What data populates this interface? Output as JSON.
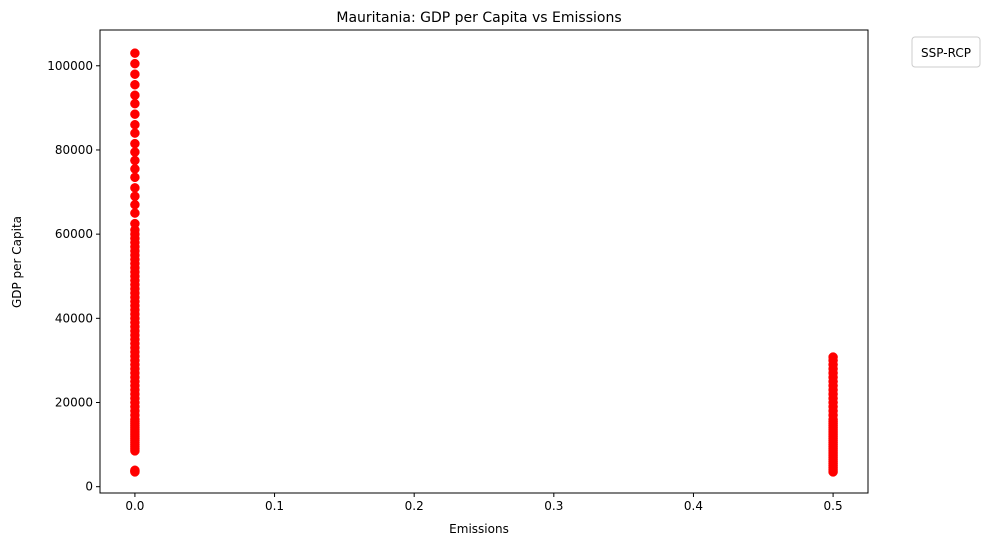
{
  "chart_data": {
    "type": "scatter",
    "title": "Mauritania: GDP per Capita vs Emissions",
    "xlabel": "Emissions",
    "ylabel": "GDP per Capita",
    "xlim": [
      -0.025,
      0.525
    ],
    "ylim": [
      -1500,
      108500
    ],
    "x_ticks": [
      0.0,
      0.1,
      0.2,
      0.3,
      0.4,
      0.5
    ],
    "x_tick_labels": [
      "0.0",
      "0.1",
      "0.2",
      "0.3",
      "0.4",
      "0.5"
    ],
    "y_ticks": [
      0,
      20000,
      40000,
      60000,
      80000,
      100000
    ],
    "y_tick_labels": [
      "0",
      "20000",
      "40000",
      "60000",
      "80000",
      "100000"
    ],
    "grid": false,
    "legend": {
      "title": "SSP-RCP",
      "placement": "outside-top-right",
      "entries": []
    },
    "series": [
      {
        "color": "#ff0000",
        "points": [
          [
            0,
            3500
          ],
          [
            0,
            3700
          ],
          [
            0,
            3900
          ],
          [
            0,
            8500
          ],
          [
            0,
            9000
          ],
          [
            0,
            9500
          ],
          [
            0,
            10000
          ],
          [
            0,
            10500
          ],
          [
            0,
            11000
          ],
          [
            0,
            11500
          ],
          [
            0,
            12000
          ],
          [
            0,
            12500
          ],
          [
            0,
            13000
          ],
          [
            0,
            13500
          ],
          [
            0,
            14000
          ],
          [
            0,
            14500
          ],
          [
            0,
            15000
          ],
          [
            0,
            15500
          ],
          [
            0,
            16000
          ],
          [
            0,
            17000
          ],
          [
            0,
            18000
          ],
          [
            0,
            19000
          ],
          [
            0,
            20000
          ],
          [
            0,
            21000
          ],
          [
            0,
            22000
          ],
          [
            0,
            23000
          ],
          [
            0,
            24000
          ],
          [
            0,
            25000
          ],
          [
            0,
            26000
          ],
          [
            0,
            27000
          ],
          [
            0,
            28000
          ],
          [
            0,
            29000
          ],
          [
            0,
            30000
          ],
          [
            0,
            31000
          ],
          [
            0,
            32000
          ],
          [
            0,
            33000
          ],
          [
            0,
            34000
          ],
          [
            0,
            35000
          ],
          [
            0,
            36000
          ],
          [
            0,
            37000
          ],
          [
            0,
            38000
          ],
          [
            0,
            39000
          ],
          [
            0,
            40000
          ],
          [
            0,
            41000
          ],
          [
            0,
            42000
          ],
          [
            0,
            43000
          ],
          [
            0,
            44000
          ],
          [
            0,
            45000
          ],
          [
            0,
            46000
          ],
          [
            0,
            47000
          ],
          [
            0,
            48000
          ],
          [
            0,
            49000
          ],
          [
            0,
            50000
          ],
          [
            0,
            51000
          ],
          [
            0,
            52000
          ],
          [
            0,
            53000
          ],
          [
            0,
            54000
          ],
          [
            0,
            55000
          ],
          [
            0,
            56000
          ],
          [
            0,
            57000
          ],
          [
            0,
            58000
          ],
          [
            0,
            59000
          ],
          [
            0,
            60000
          ],
          [
            0,
            61000
          ],
          [
            0,
            62500
          ],
          [
            0,
            65000
          ],
          [
            0,
            67000
          ],
          [
            0,
            69000
          ],
          [
            0,
            71000
          ],
          [
            0,
            73500
          ],
          [
            0,
            75500
          ],
          [
            0,
            77500
          ],
          [
            0,
            79500
          ],
          [
            0,
            81500
          ],
          [
            0,
            84000
          ],
          [
            0,
            86000
          ],
          [
            0,
            88500
          ],
          [
            0,
            91000
          ],
          [
            0,
            93000
          ],
          [
            0,
            95500
          ],
          [
            0,
            98000
          ],
          [
            0,
            100500
          ],
          [
            0,
            103000
          ],
          [
            0.5,
            3500
          ],
          [
            0.5,
            4000
          ],
          [
            0.5,
            4500
          ],
          [
            0.5,
            5000
          ],
          [
            0.5,
            5500
          ],
          [
            0.5,
            6000
          ],
          [
            0.5,
            6500
          ],
          [
            0.5,
            7000
          ],
          [
            0.5,
            7500
          ],
          [
            0.5,
            8000
          ],
          [
            0.5,
            8500
          ],
          [
            0.5,
            9000
          ],
          [
            0.5,
            9500
          ],
          [
            0.5,
            10000
          ],
          [
            0.5,
            10500
          ],
          [
            0.5,
            11000
          ],
          [
            0.5,
            11500
          ],
          [
            0.5,
            12000
          ],
          [
            0.5,
            12500
          ],
          [
            0.5,
            13000
          ],
          [
            0.5,
            13500
          ],
          [
            0.5,
            14000
          ],
          [
            0.5,
            14500
          ],
          [
            0.5,
            15000
          ],
          [
            0.5,
            15500
          ],
          [
            0.5,
            16000
          ],
          [
            0.5,
            17000
          ],
          [
            0.5,
            18000
          ],
          [
            0.5,
            19000
          ],
          [
            0.5,
            20000
          ],
          [
            0.5,
            21000
          ],
          [
            0.5,
            22000
          ],
          [
            0.5,
            23000
          ],
          [
            0.5,
            24000
          ],
          [
            0.5,
            25000
          ],
          [
            0.5,
            26000
          ],
          [
            0.5,
            27000
          ],
          [
            0.5,
            28000
          ],
          [
            0.5,
            29000
          ],
          [
            0.5,
            30000
          ],
          [
            0.5,
            30800
          ]
        ]
      }
    ]
  }
}
